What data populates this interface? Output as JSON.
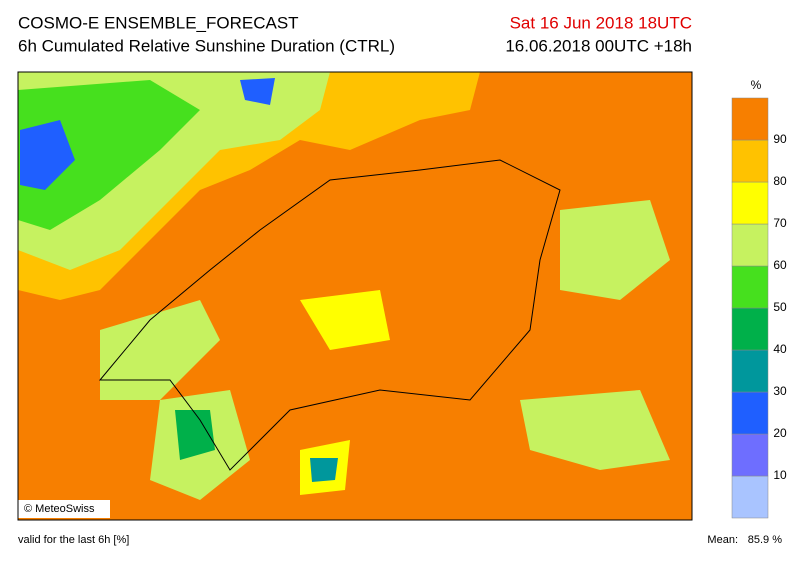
{
  "header": {
    "title": "COSMO-E ENSEMBLE_FORECAST",
    "subtitle": "6h Cumulated Relative Sunshine Duration (CTRL)",
    "valid_time": "Sat 16 Jun 2018 18UTC",
    "run": "16.06.2018 00UTC +18h"
  },
  "legend": {
    "unit": "%",
    "labels": [
      "10",
      "20",
      "30",
      "40",
      "50",
      "60",
      "70",
      "80",
      "90"
    ],
    "colors": [
      "#a9c4ff",
      "#6e6eff",
      "#1f5fff",
      "#00979c",
      "#00b04a",
      "#46e01e",
      "#c6f260",
      "#ffff00",
      "#ffc200",
      "#f77f00"
    ]
  },
  "map": {
    "copyright": "© MeteoSwiss"
  },
  "footer": {
    "note": "valid for the last 6h [%]",
    "mean_label": "Mean:",
    "mean_value": "85.9 %"
  }
}
